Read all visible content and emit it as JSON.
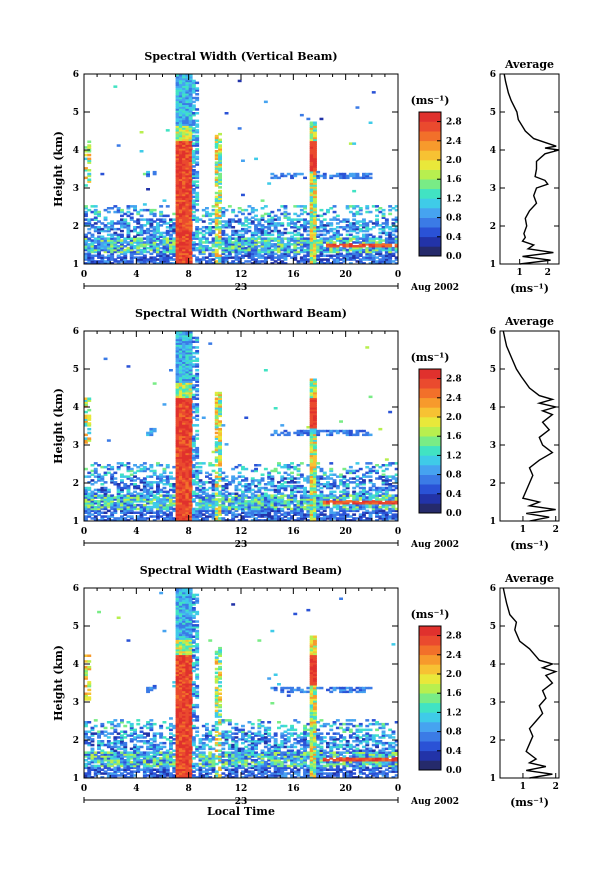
{
  "chart_data": [
    {
      "type": "heatmap",
      "title": "Spectral Width (Vertical Beam)",
      "ylabel": "Height (km)",
      "xlabel": "",
      "xticks": [
        "0",
        "4",
        "8",
        "12",
        "16",
        "20",
        "0"
      ],
      "yticks": [
        "1",
        "2",
        "3",
        "4",
        "5",
        "6"
      ],
      "xlim": [
        0,
        24
      ],
      "ylim": [
        1,
        6
      ],
      "day_label": "23",
      "date_label": "Aug 2002",
      "colorbar": {
        "unit": "(ms⁻¹)",
        "ticks": [
          "0.0",
          "0.4",
          "0.8",
          "1.2",
          "1.6",
          "2.0",
          "2.4",
          "2.8"
        ],
        "range": [
          0,
          3.0
        ]
      },
      "profile": {
        "title": "Average",
        "xlabel": "(ms⁻¹)",
        "xticks": [
          "1",
          "2"
        ],
        "xlim": [
          0.3,
          2.4
        ],
        "yticks": [
          "1",
          "2",
          "3",
          "4",
          "5",
          "6"
        ],
        "height": [
          1.0,
          1.1,
          1.2,
          1.3,
          1.4,
          1.5,
          1.6,
          1.7,
          1.8,
          1.9,
          2.0,
          2.2,
          2.4,
          2.6,
          2.8,
          3.0,
          3.1,
          3.2,
          3.3,
          3.5,
          3.7,
          3.9,
          4.0,
          4.05,
          4.1,
          4.2,
          4.3,
          4.5,
          4.8,
          5.0,
          5.3,
          5.5,
          5.8,
          6.0
        ],
        "width": [
          1.0,
          2.1,
          1.1,
          2.2,
          1.3,
          1.5,
          1.1,
          1.2,
          1.15,
          1.2,
          1.25,
          1.2,
          1.35,
          1.6,
          1.5,
          1.6,
          2.0,
          1.9,
          1.55,
          1.6,
          1.6,
          1.9,
          2.4,
          1.9,
          2.3,
          1.9,
          1.5,
          1.2,
          0.95,
          0.9,
          0.7,
          0.6,
          0.5,
          0.45
        ]
      }
    },
    {
      "type": "heatmap",
      "title": "Spectral Width (Northward Beam)",
      "ylabel": "Height (km)",
      "xlabel": "",
      "xticks": [
        "0",
        "4",
        "8",
        "12",
        "16",
        "20",
        "0"
      ],
      "yticks": [
        "1",
        "2",
        "3",
        "4",
        "5",
        "6"
      ],
      "xlim": [
        0,
        24
      ],
      "ylim": [
        1,
        6
      ],
      "day_label": "23",
      "date_label": "Aug 2002",
      "colorbar": {
        "unit": "(ms⁻¹)",
        "ticks": [
          "0.0",
          "0.4",
          "0.8",
          "1.2",
          "1.6",
          "2.0",
          "2.4",
          "2.8"
        ],
        "range": [
          0,
          3.0
        ]
      },
      "profile": {
        "title": "Average",
        "xlabel": "(ms⁻¹)",
        "xticks": [
          "1",
          "2"
        ],
        "xlim": [
          0.3,
          2.1
        ],
        "yticks": [
          "1",
          "2",
          "3",
          "4",
          "5",
          "6"
        ],
        "height": [
          1.0,
          1.1,
          1.2,
          1.3,
          1.4,
          1.5,
          1.6,
          1.8,
          2.0,
          2.2,
          2.4,
          2.6,
          2.8,
          3.0,
          3.2,
          3.4,
          3.6,
          3.8,
          3.9,
          4.0,
          4.1,
          4.2,
          4.3,
          4.5,
          4.8,
          5.0,
          5.3,
          5.6,
          5.8,
          6.0
        ],
        "width": [
          1.2,
          1.8,
          1.1,
          2.0,
          1.2,
          1.5,
          1.0,
          1.1,
          1.2,
          1.3,
          1.2,
          1.5,
          1.9,
          1.6,
          1.5,
          1.8,
          1.6,
          1.9,
          1.6,
          2.0,
          1.5,
          1.9,
          1.5,
          1.2,
          0.95,
          0.8,
          0.65,
          0.5,
          0.45,
          0.4
        ]
      }
    },
    {
      "type": "heatmap",
      "title": "Spectral Width (Eastward Beam)",
      "ylabel": "Height (km)",
      "xlabel": "Local Time",
      "xticks": [
        "0",
        "4",
        "8",
        "12",
        "16",
        "20",
        "0"
      ],
      "yticks": [
        "1",
        "2",
        "3",
        "4",
        "5",
        "6"
      ],
      "xlim": [
        0,
        24
      ],
      "ylim": [
        1,
        6
      ],
      "day_label": "23",
      "date_label": "Aug 2002",
      "colorbar": {
        "unit": "(ms⁻¹)",
        "ticks": [
          "0.0",
          "0.4",
          "0.8",
          "1.2",
          "1.6",
          "2.0",
          "2.4",
          "2.8"
        ],
        "range": [
          0,
          3.0
        ]
      },
      "profile": {
        "title": "Average",
        "xlabel": "(ms⁻¹)",
        "xticks": [
          "1",
          "2"
        ],
        "xlim": [
          0.3,
          2.1
        ],
        "yticks": [
          "1",
          "2",
          "3",
          "4",
          "5",
          "6"
        ],
        "height": [
          1.0,
          1.1,
          1.2,
          1.3,
          1.4,
          1.5,
          1.7,
          1.9,
          2.1,
          2.3,
          2.5,
          2.7,
          2.9,
          3.1,
          3.3,
          3.5,
          3.7,
          3.8,
          3.9,
          4.0,
          4.1,
          4.2,
          4.4,
          4.6,
          4.9,
          5.1,
          5.3,
          5.6,
          5.8,
          6.0
        ],
        "width": [
          1.2,
          1.9,
          1.1,
          1.7,
          1.2,
          1.4,
          1.1,
          1.2,
          1.3,
          1.2,
          1.4,
          1.6,
          1.5,
          1.7,
          1.6,
          1.9,
          1.7,
          2.0,
          1.6,
          1.9,
          1.5,
          1.4,
          1.2,
          0.9,
          0.75,
          0.8,
          0.6,
          0.5,
          0.45,
          0.4
        ]
      }
    }
  ]
}
